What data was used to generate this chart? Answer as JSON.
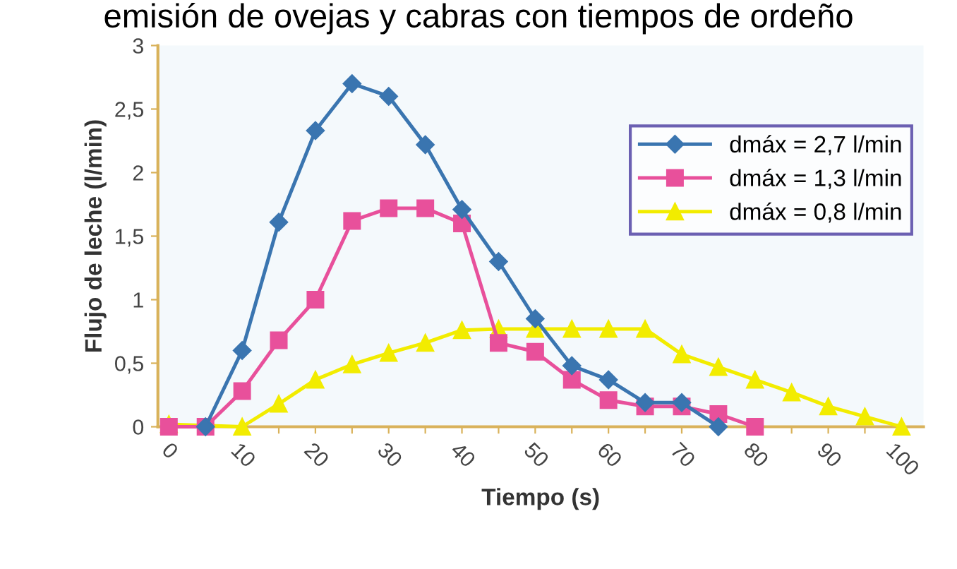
{
  "chart_data": {
    "type": "line",
    "title": "emisión de ovejas y cabras con tiempos de ordeño",
    "xlabel": "Tiempo (s)",
    "ylabel": "Flujo de leche (l/min)",
    "xlim": [
      -1.5,
      103
    ],
    "ylim": [
      0,
      3
    ],
    "xticks": [
      0,
      {
        "value": 5,
        "label": null
      },
      10,
      {
        "value": 15,
        "label": null
      },
      20,
      {
        "value": 25,
        "label": null
      },
      30,
      {
        "value": 35,
        "label": null
      },
      40,
      {
        "value": 45,
        "label": null
      },
      50,
      {
        "value": 55,
        "label": null
      },
      60,
      {
        "value": 65,
        "label": null
      },
      70,
      {
        "value": 75,
        "label": null
      },
      80,
      {
        "value": 85,
        "label": null
      },
      90,
      {
        "value": 95,
        "label": null
      },
      100
    ],
    "yticks": [
      0,
      {
        "value": 0.5,
        "label": "0,5"
      },
      1,
      {
        "value": 1.5,
        "label": "1,5"
      },
      2,
      {
        "value": 2.5,
        "label": "2,5"
      },
      3
    ],
    "grid": false,
    "legend": "top right",
    "line_style": "solid",
    "series": [
      {
        "name": "dmáx = 2,7 l/min",
        "color": "#3a75b0",
        "marker": "diamond",
        "x": [
          5,
          10,
          15,
          20,
          25,
          30,
          35,
          40,
          45,
          50,
          55,
          60,
          65,
          70,
          75
        ],
        "values": [
          0,
          0.6,
          1.61,
          2.33,
          2.7,
          2.6,
          2.22,
          1.71,
          1.3,
          0.85,
          0.48,
          0.37,
          0.19,
          0.19,
          0
        ]
      },
      {
        "name": "dmáx = 1,3 l/min",
        "color": "#e8509b",
        "marker": "square",
        "x": [
          0,
          5,
          10,
          15,
          20,
          25,
          30,
          35,
          40,
          45,
          50,
          55,
          60,
          65,
          70,
          75,
          80
        ],
        "values": [
          0,
          0,
          0.28,
          0.68,
          1.0,
          1.62,
          1.72,
          1.72,
          1.6,
          0.66,
          0.59,
          0.37,
          0.21,
          0.16,
          0.16,
          0.1,
          0
        ]
      },
      {
        "name": "dmáx = 0,8 l/min",
        "color": "#f2ec00",
        "marker": "triangle",
        "x": [
          0,
          10,
          15,
          20,
          25,
          30,
          35,
          40,
          45,
          50,
          55,
          60,
          65,
          70,
          75,
          80,
          85,
          90,
          95,
          100
        ],
        "values": [
          0.02,
          0,
          0.18,
          0.37,
          0.49,
          0.58,
          0.66,
          0.76,
          0.77,
          0.77,
          0.77,
          0.77,
          0.77,
          0.57,
          0.47,
          0.37,
          0.27,
          0.16,
          0.08,
          0
        ]
      }
    ]
  }
}
